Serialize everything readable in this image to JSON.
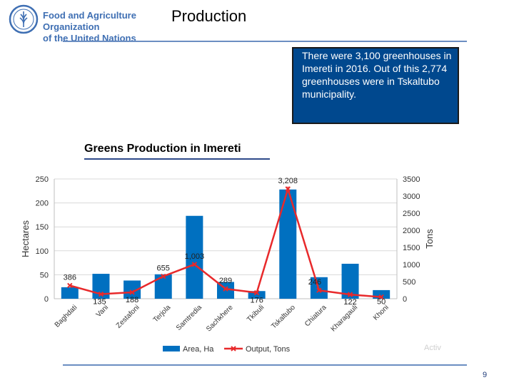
{
  "header": {
    "org_line1": "Food and Agriculture Organization",
    "org_line2": "of the United Nations",
    "slide_title": "Production"
  },
  "callout": {
    "text": "There were 3,100 greenhouses in Imereti in 2016. Out of this 2,774 greenhouses were in Tskaltubo municipality."
  },
  "chart_title": "Greens Production in Imereti",
  "footer": {
    "watermark": "Activ",
    "page_number": "9"
  },
  "colors": {
    "bar": "#0070c0",
    "line": "#e8292b",
    "callout_bg": "#00488e",
    "accent": "#3f6fb3"
  },
  "chart_data": {
    "type": "bar",
    "categories": [
      "Baghdati",
      "Vani",
      "Zestafoni",
      "Terjola",
      "Samtredia",
      "Sachkhere",
      "Tkibuli",
      "Tskaltubo",
      "Chiatura",
      "Kharagauli",
      "Khoni"
    ],
    "series": [
      {
        "name": "Area, Ha",
        "type": "bar",
        "axis": "left",
        "values": [
          24,
          52,
          38,
          51,
          173,
          35,
          16,
          228,
          45,
          73,
          18
        ]
      },
      {
        "name": "Output, Tons",
        "type": "line",
        "axis": "right",
        "values": [
          386,
          135,
          188,
          655,
          1003,
          289,
          176,
          3208,
          246,
          122,
          50
        ]
      }
    ],
    "data_labels": [
      "386",
      "135",
      "188",
      "655",
      "1,003",
      "289",
      "176",
      "3,208",
      "246",
      "122",
      "50"
    ],
    "ylabel": "Hectares",
    "y2label": "Tons",
    "ylim": [
      0,
      250
    ],
    "y2lim": [
      0,
      3500
    ],
    "yticks": [
      0,
      50,
      100,
      150,
      200,
      250
    ],
    "y2ticks": [
      0,
      500,
      1000,
      1500,
      2000,
      2500,
      3000,
      3500
    ],
    "grid": "horizontal",
    "legend_position": "bottom"
  }
}
